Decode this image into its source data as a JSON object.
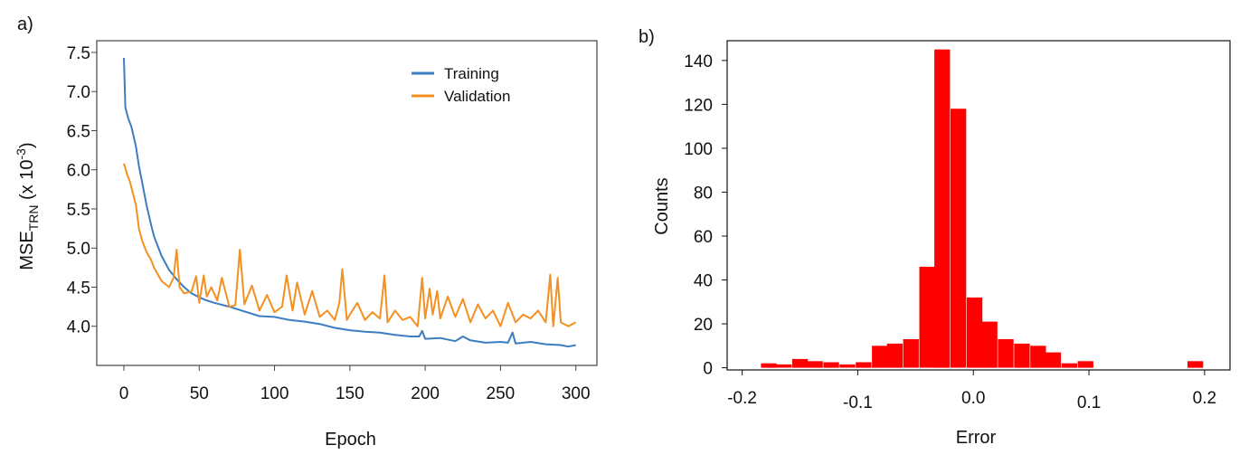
{
  "figure": {
    "label_a": "a)",
    "label_b": "b)"
  },
  "chart_data": [
    {
      "id": "a",
      "type": "line",
      "xlabel": "Epoch",
      "ylabel_main": "MSE",
      "ylabel_sub": "TRN",
      "ylabel_unit_open": " (x 10",
      "ylabel_exp": "-3",
      "ylabel_close": ")",
      "xlim": [
        -18,
        314
      ],
      "ylim": [
        3.5,
        7.65
      ],
      "xticks": [
        0,
        50,
        100,
        150,
        200,
        250,
        300
      ],
      "yticks": [
        4.0,
        4.5,
        5.0,
        5.5,
        6.0,
        6.5,
        7.0,
        7.5
      ],
      "legend_position": "top-right",
      "grid": false,
      "series": [
        {
          "name": "Training",
          "color": "#3b7dc0",
          "x": [
            0,
            1,
            2,
            3,
            5,
            8,
            10,
            12,
            15,
            18,
            20,
            25,
            30,
            35,
            40,
            45,
            50,
            55,
            60,
            70,
            80,
            90,
            100,
            110,
            120,
            130,
            140,
            150,
            160,
            170,
            180,
            190,
            196,
            198,
            200,
            210,
            220,
            225,
            230,
            240,
            250,
            255,
            258,
            260,
            270,
            280,
            290,
            295,
            300
          ],
          "y": [
            7.43,
            6.8,
            6.72,
            6.65,
            6.55,
            6.3,
            6.05,
            5.85,
            5.55,
            5.3,
            5.15,
            4.9,
            4.72,
            4.6,
            4.5,
            4.42,
            4.37,
            4.33,
            4.3,
            4.25,
            4.19,
            4.13,
            4.12,
            4.08,
            4.06,
            4.03,
            3.98,
            3.95,
            3.93,
            3.92,
            3.89,
            3.87,
            3.87,
            3.94,
            3.84,
            3.85,
            3.81,
            3.87,
            3.82,
            3.79,
            3.8,
            3.79,
            3.92,
            3.78,
            3.8,
            3.77,
            3.76,
            3.74,
            3.76
          ]
        },
        {
          "name": "Validation",
          "color": "#f39022",
          "x": [
            0,
            2,
            4,
            6,
            8,
            10,
            12,
            15,
            18,
            20,
            25,
            30,
            33,
            35,
            37,
            40,
            45,
            48,
            50,
            53,
            55,
            58,
            62,
            65,
            70,
            74,
            77,
            80,
            85,
            90,
            95,
            100,
            105,
            108,
            112,
            115,
            120,
            125,
            130,
            135,
            140,
            143,
            145,
            148,
            150,
            155,
            160,
            165,
            170,
            173,
            175,
            180,
            185,
            190,
            195,
            198,
            200,
            203,
            205,
            208,
            210,
            215,
            220,
            225,
            230,
            235,
            240,
            245,
            250,
            255,
            260,
            265,
            270,
            275,
            280,
            283,
            285,
            288,
            290,
            295,
            300
          ],
          "y": [
            6.08,
            5.95,
            5.85,
            5.7,
            5.55,
            5.25,
            5.1,
            4.95,
            4.85,
            4.75,
            4.58,
            4.5,
            4.62,
            4.98,
            4.5,
            4.42,
            4.45,
            4.64,
            4.3,
            4.65,
            4.38,
            4.5,
            4.33,
            4.62,
            4.25,
            4.27,
            4.98,
            4.28,
            4.52,
            4.2,
            4.4,
            4.18,
            4.25,
            4.65,
            4.2,
            4.56,
            4.15,
            4.45,
            4.12,
            4.2,
            4.08,
            4.3,
            4.73,
            4.08,
            4.15,
            4.3,
            4.08,
            4.18,
            4.1,
            4.65,
            4.05,
            4.2,
            4.08,
            4.12,
            4.0,
            4.62,
            4.1,
            4.48,
            4.15,
            4.45,
            4.1,
            4.38,
            4.12,
            4.35,
            4.05,
            4.28,
            4.1,
            4.2,
            4.0,
            4.3,
            4.05,
            4.15,
            4.1,
            4.2,
            4.05,
            4.66,
            4.0,
            4.62,
            4.05,
            4.0,
            4.05
          ]
        }
      ]
    },
    {
      "id": "b",
      "type": "bar",
      "xlabel": "Error",
      "ylabel": "Counts",
      "xlim": [
        -0.213,
        0.222
      ],
      "ylim": [
        -1,
        149
      ],
      "xticks": [
        -0.2,
        -0.1,
        0.0,
        0.1,
        0.2
      ],
      "xtick_labels": [
        "-0.2",
        "-0.1",
        "0.0",
        "0.1",
        "0.2"
      ],
      "yticks": [
        0,
        20,
        40,
        60,
        80,
        100,
        120,
        140
      ],
      "bar_color": "#ff0000",
      "bar_width": 0.0135,
      "grid": false,
      "bars": {
        "x": [
          -0.177,
          -0.164,
          -0.15,
          -0.137,
          -0.123,
          -0.109,
          -0.095,
          -0.081,
          -0.068,
          -0.054,
          -0.04,
          -0.027,
          -0.013,
          0.001,
          0.014,
          0.028,
          0.042,
          0.056,
          0.069,
          0.083,
          0.097,
          0.11,
          0.124,
          0.138,
          0.192
        ],
        "values": [
          2,
          1.5,
          4,
          3,
          2.5,
          1.5,
          2.5,
          10,
          11,
          13,
          46,
          145,
          118,
          32,
          21,
          13,
          11,
          10,
          7,
          2,
          3,
          0,
          0,
          0,
          3
        ]
      }
    }
  ]
}
